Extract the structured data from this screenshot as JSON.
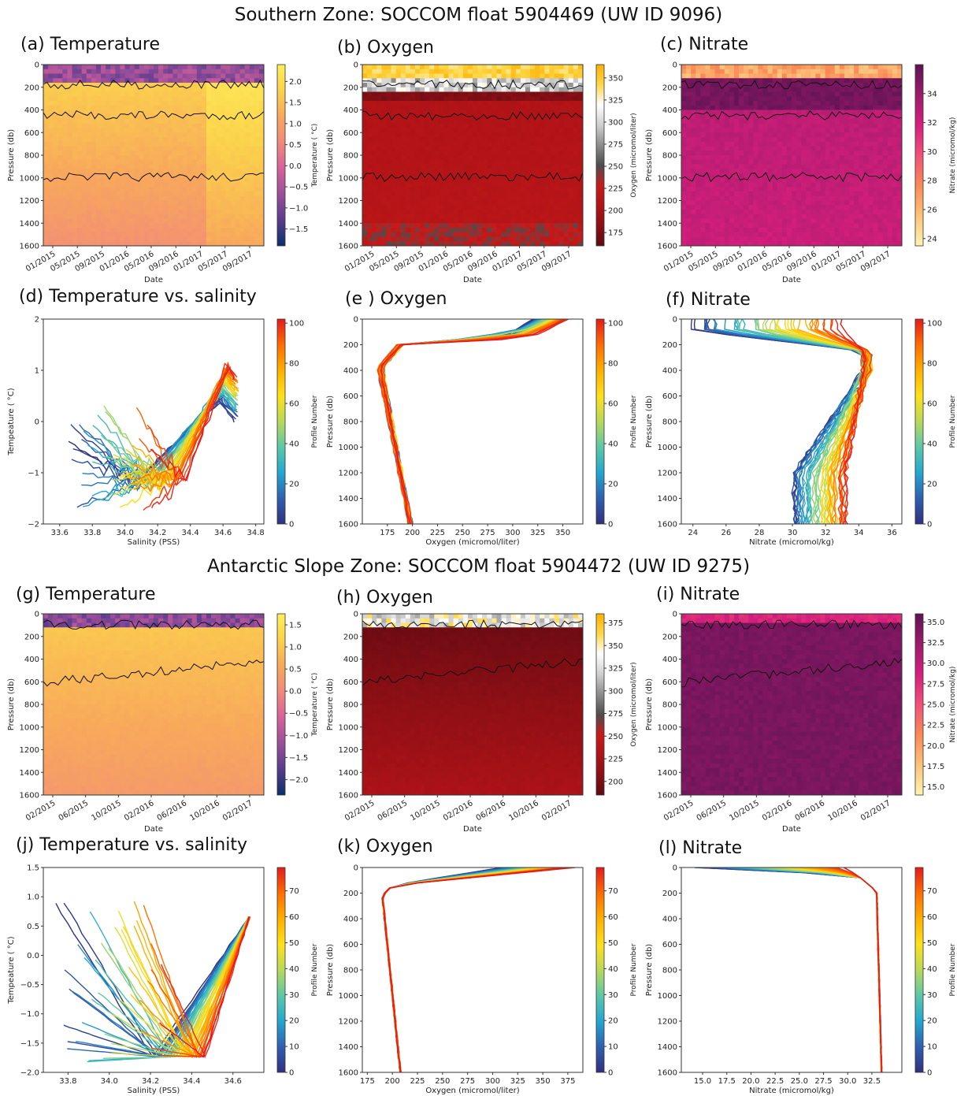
{
  "sections": [
    {
      "title": "Southern Zone: SOCCOM float 5904469 (UW ID 9096)"
    },
    {
      "title": "Antarctic Slope Zone: SOCCOM float 5904472 (UW ID 9275)"
    }
  ],
  "colors": {
    "temperature": [
      "#08306b",
      "#5a3c8c",
      "#9a4f9a",
      "#d8619a",
      "#f08a7a",
      "#f8a85c",
      "#fbd24c",
      "#ffef5a"
    ],
    "oxygen": [
      "#5e0a12",
      "#8a0f15",
      "#b01317",
      "#c81a1a",
      "#4d4d4d",
      "#8c8c8c",
      "#cfcfcf",
      "#ffffff",
      "#ffd84a",
      "#ffb000"
    ],
    "nitrate": [
      "#fff3b0",
      "#fdc27a",
      "#f98a55",
      "#f2507a",
      "#d61f7c",
      "#9b1b6a",
      "#5e1354"
    ],
    "profile": [
      "#30307f",
      "#2f5fb0",
      "#22a7d0",
      "#5cc8a8",
      "#b8d95a",
      "#ffe01a",
      "#ffb000",
      "#ff6d00",
      "#e41a1c"
    ]
  },
  "chart_data": [
    {
      "panel": "(a) Temperature",
      "type": "heatmap",
      "xlabel": "Date",
      "ylabel": "Pressure (db)",
      "colorbar_label": "Temperature ( °C)",
      "xticks": [
        "01/2015",
        "05/2015",
        "09/2015",
        "01/2016",
        "05/2016",
        "09/2016",
        "01/2017",
        "05/2017",
        "09/2017"
      ],
      "yticks": [
        0,
        200,
        400,
        600,
        800,
        1000,
        1200,
        1400,
        1600
      ],
      "ylim": [
        1600,
        0
      ],
      "colorbar_ticks": [
        "2.0",
        "1.5",
        "1.0",
        "0.5",
        "0.0",
        "−0.5",
        "−1.0",
        "−1.5"
      ],
      "colorbar_range": [
        -1.9,
        2.4
      ],
      "colormap": "temperature"
    },
    {
      "panel": "(b) Oxygen",
      "type": "heatmap",
      "xlabel": "Date",
      "ylabel": "Pressure (db)",
      "colorbar_label": "Oxygen (micromol/liter)",
      "xticks": [
        "01/2015",
        "05/2015",
        "09/2015",
        "01/2016",
        "05/2016",
        "09/2016",
        "01/2017",
        "05/2017",
        "09/2017"
      ],
      "yticks": [
        0,
        200,
        400,
        600,
        800,
        1000,
        1200,
        1400,
        1600
      ],
      "ylim": [
        1600,
        0
      ],
      "colorbar_ticks": [
        "350",
        "325",
        "300",
        "275",
        "250",
        "225",
        "200",
        "175"
      ],
      "colorbar_range": [
        160,
        365
      ],
      "colormap": "oxygen"
    },
    {
      "panel": "(c) Nitrate",
      "type": "heatmap",
      "xlabel": "Date",
      "ylabel": "Pressure (db)",
      "colorbar_label": "Nitrate (micromol/kg)",
      "xticks": [
        "01/2015",
        "05/2015",
        "09/2015",
        "01/2016",
        "05/2016",
        "09/2016",
        "01/2017",
        "05/2017",
        "09/2017"
      ],
      "yticks": [
        0,
        200,
        400,
        600,
        800,
        1000,
        1200,
        1400,
        1600
      ],
      "ylim": [
        1600,
        0
      ],
      "colorbar_ticks": [
        "34",
        "32",
        "30",
        "28",
        "26",
        "24"
      ],
      "colorbar_range": [
        23.5,
        36
      ],
      "colormap": "nitrate"
    },
    {
      "panel": "(d) Temperature vs. salinity",
      "type": "line",
      "xlabel": "Salinity (PSS)",
      "ylabel": "Tempeature ( °C)",
      "colorbar_label": "Profile Number",
      "xticks": [
        "33.6",
        "33.8",
        "34.0",
        "34.2",
        "34.4",
        "34.6",
        "34.8"
      ],
      "xlim": [
        33.5,
        34.85
      ],
      "yticks": [
        "2",
        "1",
        "0",
        "−1",
        "−2"
      ],
      "ylim": [
        -2,
        2.7
      ],
      "colorbar_ticks": [
        "100",
        "80",
        "60",
        "40",
        "20",
        "0"
      ],
      "colorbar_range": [
        0,
        102
      ],
      "series_shape": "ts_southern",
      "colormap": "profile"
    },
    {
      "panel": "(e ) Oxygen",
      "type": "line",
      "xlabel": "Oxygen (micromol/liter)",
      "ylabel": "Pressure (db)",
      "colorbar_label": "Profile Number",
      "xticks": [
        "175",
        "200",
        "225",
        "250",
        "275",
        "300",
        "325",
        "350"
      ],
      "xlim": [
        150,
        370
      ],
      "yticks": [
        0,
        200,
        400,
        600,
        800,
        1000,
        1200,
        1400,
        1600
      ],
      "ylim": [
        1600,
        0
      ],
      "colorbar_ticks": [
        "100",
        "80",
        "60",
        "40",
        "20",
        "0"
      ],
      "colorbar_range": [
        0,
        102
      ],
      "series_shape": "oxy_southern",
      "colormap": "profile"
    },
    {
      "panel": "(f) Nitrate",
      "type": "line",
      "xlabel": "Nitrate (micromol/kg)",
      "ylabel": "Pressure (db)",
      "colorbar_label": "Profile Number",
      "xticks": [
        "24",
        "26",
        "28",
        "30",
        "32",
        "34",
        "36"
      ],
      "xlim": [
        23.3,
        36.6
      ],
      "yticks": [
        0,
        200,
        400,
        600,
        800,
        1000,
        1200,
        1400,
        1600
      ],
      "ylim": [
        1600,
        0
      ],
      "colorbar_ticks": [
        "100",
        "80",
        "60",
        "40",
        "20",
        "0"
      ],
      "colorbar_range": [
        0,
        102
      ],
      "series_shape": "nit_southern",
      "colormap": "profile"
    },
    {
      "panel": "(g) Temperature",
      "type": "heatmap",
      "xlabel": "Date",
      "ylabel": "Pressure (db)",
      "colorbar_label": "Temperature ( °C)",
      "xticks": [
        "02/2015",
        "06/2015",
        "10/2015",
        "02/2016",
        "06/2016",
        "10/2016",
        "02/2017"
      ],
      "yticks": [
        0,
        200,
        400,
        600,
        800,
        1000,
        1200,
        1400,
        1600
      ],
      "ylim": [
        1600,
        0
      ],
      "colorbar_ticks": [
        "1.5",
        "1.0",
        "0.5",
        "0.0",
        "−0.5",
        "−1.0",
        "−1.5",
        "−2.0"
      ],
      "colorbar_range": [
        -2.35,
        1.75
      ],
      "colormap": "temperature"
    },
    {
      "panel": "(h) Oxygen",
      "type": "heatmap",
      "xlabel": "Date",
      "ylabel": "Pressure (db)",
      "colorbar_label": "Oxygen (micromol/liter)",
      "xticks": [
        "02/2015",
        "06/2015",
        "10/2015",
        "02/2016",
        "06/2016",
        "10/2016",
        "02/2017"
      ],
      "yticks": [
        0,
        200,
        400,
        600,
        800,
        1000,
        1200,
        1400,
        1600
      ],
      "ylim": [
        1600,
        0
      ],
      "colorbar_ticks": [
        "375",
        "350",
        "325",
        "300",
        "275",
        "250",
        "225",
        "200"
      ],
      "colorbar_range": [
        185,
        385
      ],
      "colormap": "oxygen"
    },
    {
      "panel": "(i) Nitrate",
      "type": "heatmap",
      "xlabel": "Date",
      "ylabel": "Pressure (db)",
      "colorbar_label": "Nitrate (micromol/kg)",
      "xticks": [
        "02/2015",
        "06/2015",
        "10/2015",
        "02/2016",
        "06/2016",
        "10/2016",
        "02/2017"
      ],
      "yticks": [
        0,
        200,
        400,
        600,
        800,
        1000,
        1200,
        1400,
        1600
      ],
      "ylim": [
        1600,
        0
      ],
      "colorbar_ticks": [
        "35.0",
        "32.5",
        "30.0",
        "27.5",
        "25.0",
        "22.5",
        "20.0",
        "17.5",
        "15.0"
      ],
      "colorbar_range": [
        14,
        36
      ],
      "colormap": "nitrate"
    },
    {
      "panel": "(j) Temperature vs. salinity",
      "type": "line",
      "xlabel": "Salinity (PSS)",
      "ylabel": "Tempeature ( °C)",
      "colorbar_label": "Profile Number",
      "xticks": [
        "33.8",
        "34.0",
        "34.2",
        "34.4",
        "34.6"
      ],
      "xlim": [
        33.68,
        34.75
      ],
      "yticks": [
        "1.5",
        "1.0",
        "0.5",
        "0.0",
        "−0.5",
        "−1.0",
        "−1.5",
        "−2.0"
      ],
      "ylim": [
        -2.05,
        1.9
      ],
      "colorbar_ticks": [
        "70",
        "60",
        "50",
        "40",
        "30",
        "20",
        "10",
        "0"
      ],
      "colorbar_range": [
        0,
        79
      ],
      "series_shape": "ts_slope",
      "colormap": "profile"
    },
    {
      "panel": "(k) Oxygen",
      "type": "line",
      "xlabel": "Oxygen (micromol/liter)",
      "ylabel": "Pressure (db)",
      "colorbar_label": "Profile Number",
      "xticks": [
        "175",
        "200",
        "225",
        "250",
        "275",
        "300",
        "325",
        "350",
        "375"
      ],
      "xlim": [
        170,
        390
      ],
      "yticks": [
        0,
        200,
        400,
        600,
        800,
        1000,
        1200,
        1400,
        1600
      ],
      "ylim": [
        1600,
        0
      ],
      "colorbar_ticks": [
        "70",
        "60",
        "50",
        "40",
        "30",
        "20",
        "10",
        "0"
      ],
      "colorbar_range": [
        0,
        79
      ],
      "series_shape": "oxy_slope",
      "colormap": "profile"
    },
    {
      "panel": "(l) Nitrate",
      "type": "line",
      "xlabel": "Nitrate (micromol/kg)",
      "ylabel": "Pressure (db)",
      "colorbar_label": "Profile Number",
      "xticks": [
        "15.0",
        "17.5",
        "20.0",
        "22.5",
        "25.0",
        "27.5",
        "30.0",
        "32.5"
      ],
      "xlim": [
        12.8,
        35.6
      ],
      "yticks": [
        0,
        200,
        400,
        600,
        800,
        1000,
        1200,
        1400,
        1600
      ],
      "ylim": [
        1600,
        0
      ],
      "colorbar_ticks": [
        "70",
        "60",
        "50",
        "40",
        "30",
        "20",
        "10",
        "0"
      ],
      "colorbar_range": [
        0,
        79
      ],
      "series_shape": "nit_slope",
      "colormap": "profile"
    }
  ]
}
